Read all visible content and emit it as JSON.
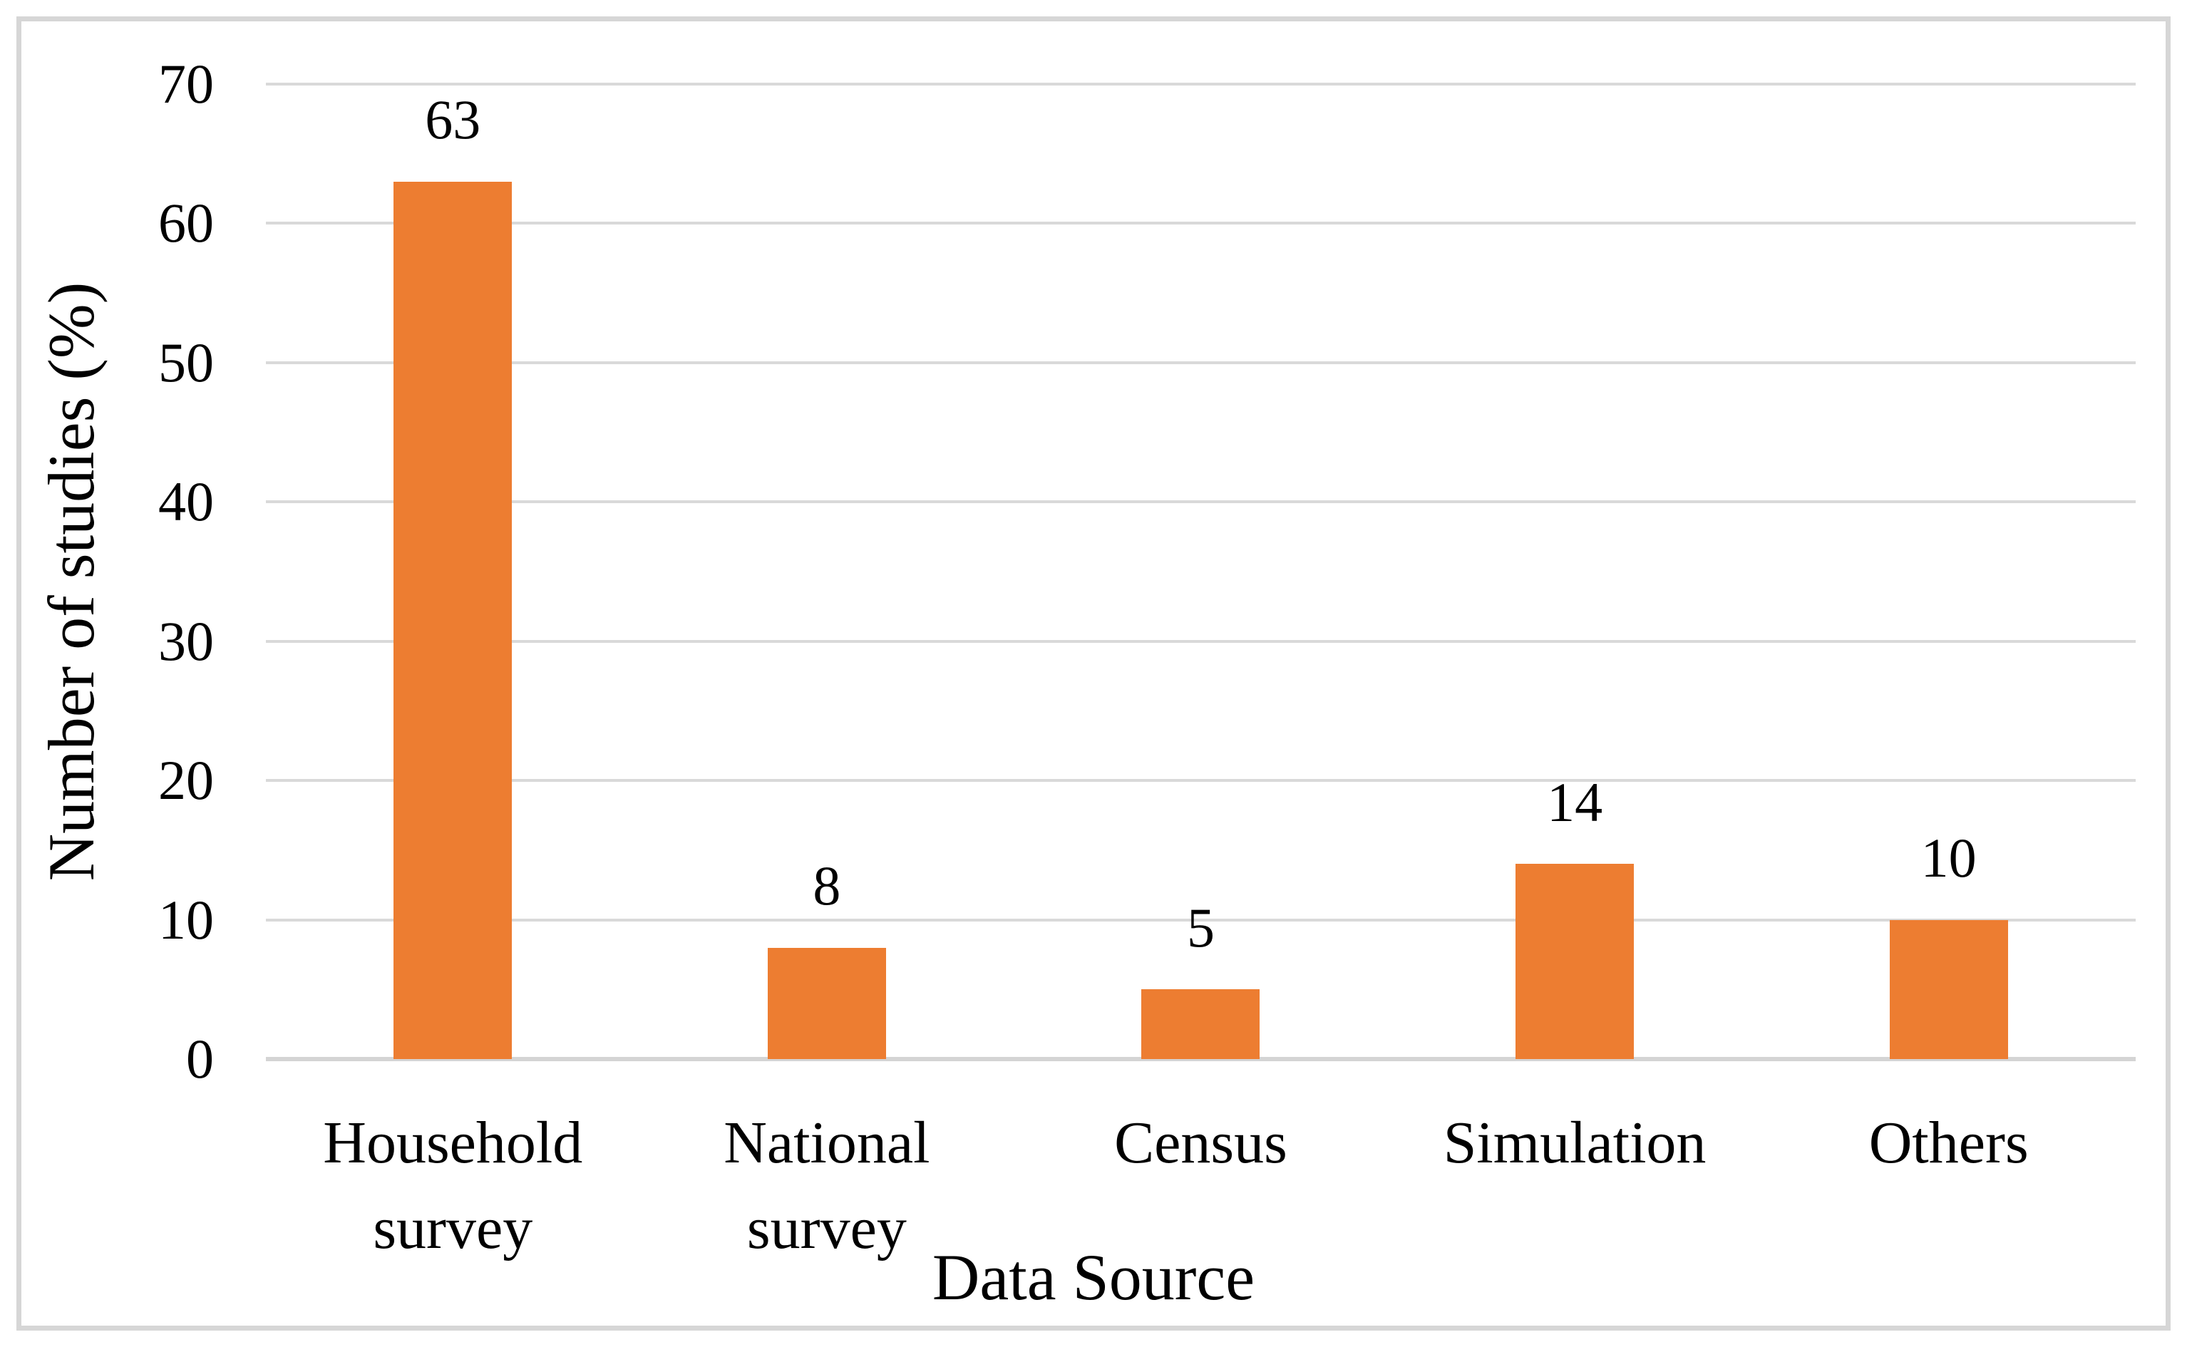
{
  "figure": {
    "background": "#FFFFFF",
    "border_color": "#D6D6D6",
    "text_color": "#000000"
  },
  "chart_data": {
    "type": "bar",
    "title": "",
    "xlabel": "Data Source",
    "ylabel": "Number of studies (%)",
    "categories": [
      "Household survey",
      "National survey",
      "Census",
      "Simulation",
      "Others"
    ],
    "values": [
      63,
      8,
      5,
      14,
      10
    ],
    "data_labels": [
      "63",
      "8",
      "5",
      "14",
      "10"
    ],
    "ylim": [
      0,
      70
    ],
    "ytick_step": 10,
    "ytick_labels": [
      "70",
      "60",
      "50",
      "40",
      "30",
      "20",
      "10",
      "0"
    ],
    "grid": true,
    "legend": false,
    "bar_color": "#ED7D31",
    "gridline_color": "#D9D9D9",
    "axis_line_color": "#D4D4D4"
  }
}
